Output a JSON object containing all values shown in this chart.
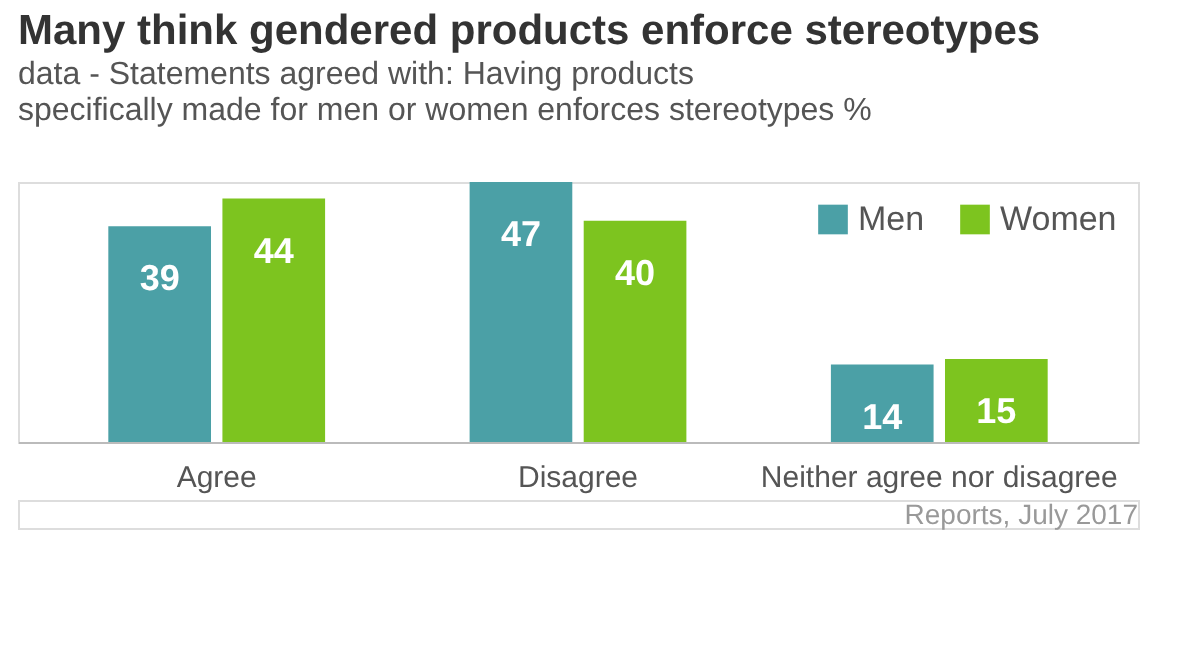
{
  "chart_data": {
    "type": "bar",
    "title": "Many think gendered products enforce stereotypes",
    "subtitle": [
      "data - Statements agreed with: Having products",
      "specifically made for men or women enforces stereotypes %"
    ],
    "categories": [
      "Agree",
      "Disagree",
      "Neither agree nor disagree"
    ],
    "series": [
      {
        "name": "Men",
        "color": "#4ba0a6",
        "values": [
          39,
          47,
          14
        ]
      },
      {
        "name": "Women",
        "color": "#7dc41f",
        "values": [
          44,
          40,
          15
        ]
      }
    ],
    "data_labels": true,
    "legend": "top right",
    "annotations": [
      "Reports, July 2017"
    ]
  }
}
